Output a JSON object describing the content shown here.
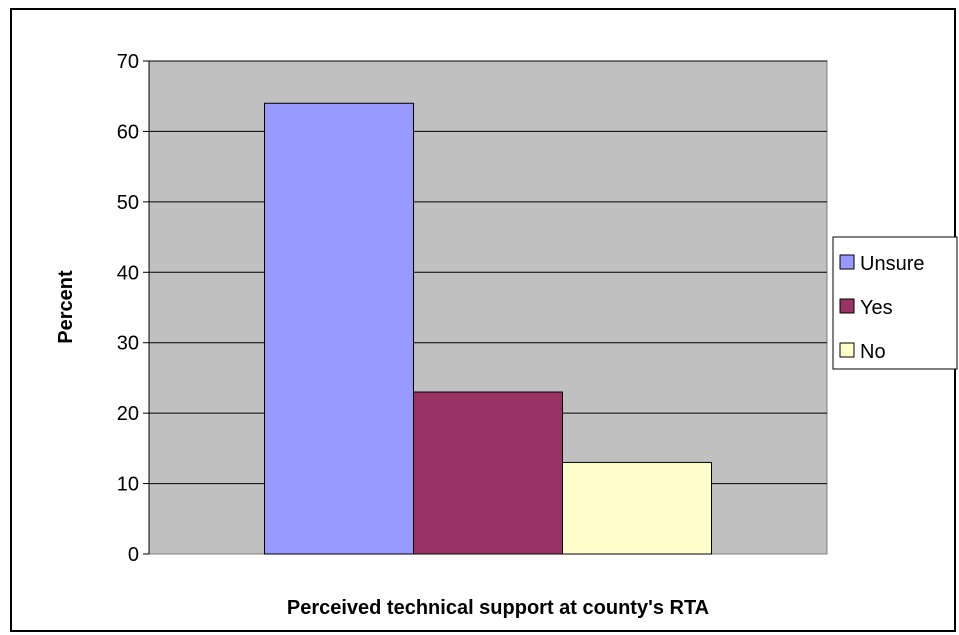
{
  "chart_data": {
    "type": "bar",
    "title": "",
    "xlabel": "Perceived technical support at county's RTA",
    "ylabel": "Percent",
    "ylim": [
      0,
      70
    ],
    "yticks": [
      0,
      10,
      20,
      30,
      40,
      50,
      60,
      70
    ],
    "grid": true,
    "legend_position": "right",
    "plot_background": "#c0c0c0",
    "series": [
      {
        "name": "Unsure",
        "values": [
          64
        ],
        "color": "#9999ff"
      },
      {
        "name": "Yes",
        "values": [
          23
        ],
        "color": "#993366"
      },
      {
        "name": "No",
        "values": [
          13
        ],
        "color": "#ffffcc"
      }
    ]
  }
}
